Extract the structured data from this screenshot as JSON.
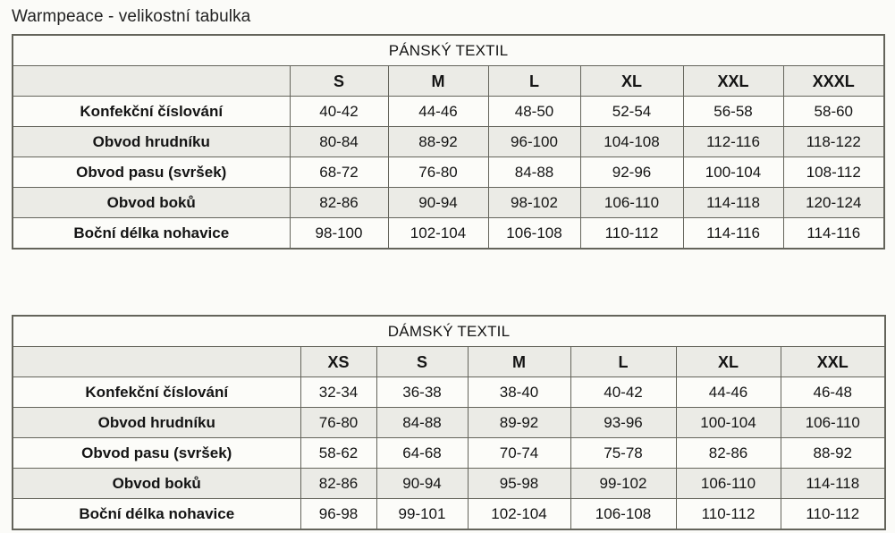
{
  "page": {
    "title": "Warmpeace - velikostní tabulka"
  },
  "colors": {
    "border": "#64645b",
    "row_alt_background": "#ebebe6",
    "row_background": "#fcfcf9",
    "text": "#141414"
  },
  "tables": [
    {
      "title": "PÁNSKÝ TEXTIL",
      "sizes": [
        "S",
        "M",
        "L",
        "XL",
        "XXL",
        "XXXL"
      ],
      "rows": [
        {
          "label": "Konfekční číslování",
          "values": [
            "40-42",
            "44-46",
            "48-50",
            "52-54",
            "56-58",
            "58-60"
          ]
        },
        {
          "label": "Obvod hrudníku",
          "values": [
            "80-84",
            "88-92",
            "96-100",
            "104-108",
            "112-116",
            "118-122"
          ]
        },
        {
          "label": "Obvod pasu (svršek)",
          "values": [
            "68-72",
            "76-80",
            "84-88",
            "92-96",
            "100-104",
            "108-112"
          ]
        },
        {
          "label": "Obvod boků",
          "values": [
            "82-86",
            "90-94",
            "98-102",
            "106-110",
            "114-118",
            "120-124"
          ]
        },
        {
          "label": "Boční délka nohavice",
          "values": [
            "98-100",
            "102-104",
            "106-108",
            "110-112",
            "114-116",
            "114-116"
          ]
        }
      ]
    },
    {
      "title": "DÁMSKÝ TEXTIL",
      "sizes": [
        "XS",
        "S",
        "M",
        "L",
        "XL",
        "XXL"
      ],
      "rows": [
        {
          "label": "Konfekční číslování",
          "values": [
            "32-34",
            "36-38",
            "38-40",
            "40-42",
            "44-46",
            "46-48"
          ]
        },
        {
          "label": "Obvod hrudníku",
          "values": [
            "76-80",
            "84-88",
            "89-92",
            "93-96",
            "100-104",
            "106-110"
          ]
        },
        {
          "label": "Obvod pasu (svršek)",
          "values": [
            "58-62",
            "64-68",
            "70-74",
            "75-78",
            "82-86",
            "88-92"
          ]
        },
        {
          "label": "Obvod boků",
          "values": [
            "82-86",
            "90-94",
            "95-98",
            "99-102",
            "106-110",
            "114-118"
          ]
        },
        {
          "label": "Boční délka nohavice",
          "values": [
            "96-98",
            "99-101",
            "102-104",
            "106-108",
            "110-112",
            "110-112"
          ]
        }
      ]
    }
  ]
}
